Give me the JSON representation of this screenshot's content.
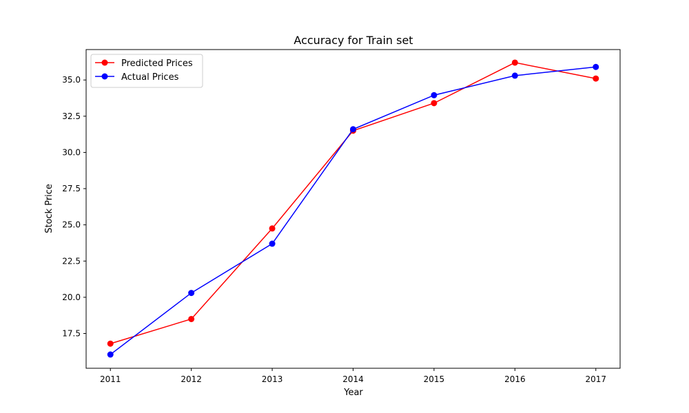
{
  "chart_data": {
    "type": "line",
    "title": "Accuracy for Train set",
    "xlabel": "Year",
    "ylabel": "Stock Price",
    "x": [
      2011,
      2012,
      2013,
      2014,
      2015,
      2016,
      2017
    ],
    "xticks": [
      "2011",
      "2012",
      "2013",
      "2014",
      "2015",
      "2016",
      "2017"
    ],
    "yticks": [
      "17.5",
      "20.0",
      "22.5",
      "25.0",
      "27.5",
      "30.0",
      "32.5",
      "35.0"
    ],
    "xlim": [
      2010.7,
      2017.3
    ],
    "ylim": [
      15.1,
      37.1
    ],
    "grid": false,
    "legend_position": "top-left",
    "series": [
      {
        "name": "Predicted Prices",
        "color": "#ff0000",
        "marker": "circle",
        "values": [
          16.8,
          18.5,
          24.75,
          31.5,
          33.4,
          36.2,
          35.1
        ]
      },
      {
        "name": "Actual Prices",
        "color": "#0000ff",
        "marker": "circle",
        "values": [
          16.05,
          20.3,
          23.7,
          31.6,
          33.95,
          35.3,
          35.9
        ]
      }
    ]
  }
}
